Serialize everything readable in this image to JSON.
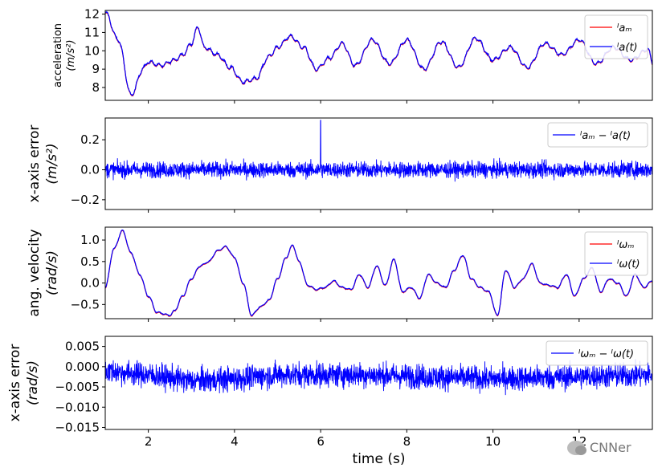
{
  "chart_data": [
    {
      "type": "line",
      "ylabel_lines": [
        "acceleration",
        "(m/s²)"
      ],
      "ylim": [
        7.3,
        12.2
      ],
      "yticks": [
        8,
        9,
        10,
        11,
        12
      ],
      "ytick_labels": [
        "8",
        "9",
        "10",
        "11",
        "12"
      ],
      "legend": [
        {
          "label": "ᴵaₘ",
          "color": "#ff0000"
        },
        {
          "label": "ᴵa(t)",
          "color": "#0000ff"
        }
      ],
      "series": [
        {
          "name": "ᴵa(t)",
          "color": "#0000ff",
          "x": [
            1.0,
            1.3,
            1.6,
            1.9,
            2.0,
            2.3,
            2.6,
            2.8,
            3.0,
            3.15,
            3.3,
            3.6,
            3.9,
            4.2,
            4.5,
            4.8,
            5.0,
            5.3,
            5.6,
            5.9,
            6.2,
            6.5,
            6.8,
            7.2,
            7.6,
            8.0,
            8.4,
            8.8,
            9.2,
            9.6,
            10.0,
            10.4,
            10.8,
            11.2,
            11.6,
            12.0,
            12.4,
            12.8,
            13.2,
            13.6,
            13.7
          ],
          "y": [
            12.1,
            10.6,
            7.6,
            9.1,
            9.4,
            9.2,
            9.5,
            9.8,
            10.4,
            11.3,
            10.2,
            9.8,
            9.1,
            8.3,
            8.5,
            9.7,
            10.2,
            10.8,
            10.2,
            9.0,
            9.6,
            10.4,
            9.2,
            10.6,
            9.3,
            10.6,
            9.0,
            10.5,
            9.1,
            10.7,
            9.5,
            10.2,
            9.1,
            10.4,
            9.8,
            10.6,
            9.3,
            10.2,
            9.5,
            10.1,
            9.4
          ]
        }
      ],
      "xlim": [
        1.0,
        13.7
      ]
    },
    {
      "type": "line",
      "ylabel_lines": [
        "x-axis error",
        "(m/s²)"
      ],
      "ylim": [
        -0.265,
        0.345
      ],
      "yticks": [
        -0.2,
        0.0,
        0.2
      ],
      "ytick_labels": [
        "−0.2",
        "0.0",
        "0.2"
      ],
      "legend": [
        {
          "label": "ᴵaₘ − ᴵa(t)",
          "color": "#0000ff"
        }
      ],
      "series": [
        {
          "name": "ᴵaₘ − ᴵa(t)",
          "color": "#0000ff",
          "noise": {
            "amplitude": 0.07,
            "spike_x": 6.0,
            "spike_y": 0.33
          }
        }
      ],
      "xlim": [
        1.0,
        13.7
      ]
    },
    {
      "type": "line",
      "ylabel_lines": [
        "ang. velocity",
        "(rad/s)"
      ],
      "ylim": [
        -0.83,
        1.3
      ],
      "yticks": [
        -0.5,
        0.0,
        0.5,
        1.0
      ],
      "ytick_labels": [
        "−0.5",
        "0.0",
        "0.5",
        "1.0"
      ],
      "legend": [
        {
          "label": "ᴵωₘ",
          "color": "#ff0000"
        },
        {
          "label": "ᴵω(t)",
          "color": "#0000ff"
        }
      ],
      "series": [
        {
          "name": "ᴵω(t)",
          "color": "#0000ff",
          "x": [
            1.0,
            1.2,
            1.4,
            1.6,
            1.8,
            2.0,
            2.2,
            2.5,
            2.6,
            2.8,
            3.0,
            3.2,
            3.4,
            3.6,
            3.8,
            4.0,
            4.2,
            4.4,
            4.6,
            4.8,
            5.0,
            5.2,
            5.35,
            5.5,
            5.7,
            5.9,
            6.1,
            6.3,
            6.5,
            6.7,
            6.9,
            7.1,
            7.3,
            7.5,
            7.7,
            7.9,
            8.1,
            8.3,
            8.5,
            8.7,
            8.9,
            9.1,
            9.3,
            9.5,
            9.7,
            9.9,
            10.1,
            10.3,
            10.5,
            10.7,
            10.9,
            11.1,
            11.3,
            11.5,
            11.7,
            11.9,
            12.1,
            12.3,
            12.5,
            12.7,
            12.9,
            13.1,
            13.3,
            13.5,
            13.7
          ],
          "y": [
            -0.1,
            0.8,
            1.22,
            0.7,
            0.2,
            -0.3,
            -0.68,
            -0.75,
            -0.65,
            -0.3,
            0.1,
            0.4,
            0.5,
            0.75,
            0.85,
            0.6,
            0.0,
            -0.75,
            -0.55,
            -0.4,
            0.1,
            0.6,
            0.88,
            0.5,
            -0.05,
            -0.15,
            -0.1,
            0.05,
            -0.1,
            -0.15,
            0.2,
            -0.1,
            0.4,
            -0.05,
            0.55,
            -0.2,
            -0.1,
            -0.35,
            0.2,
            0.0,
            -0.1,
            0.3,
            0.65,
            0.1,
            -0.1,
            -0.2,
            -0.75,
            0.3,
            -0.1,
            0.1,
            0.45,
            0.0,
            -0.05,
            -0.1,
            0.2,
            -0.3,
            0.1,
            0.35,
            -0.2,
            0.1,
            0.0,
            -0.3,
            0.2,
            -0.1,
            0.05
          ]
        }
      ],
      "xlim": [
        1.0,
        13.7
      ]
    },
    {
      "type": "line",
      "ylabel_lines": [
        "x-axis error",
        "(rad/s)"
      ],
      "ylim": [
        -0.0155,
        0.0075
      ],
      "yticks": [
        -0.015,
        -0.01,
        -0.005,
        0.0,
        0.005
      ],
      "ytick_labels": [
        "−0.015",
        "−0.010",
        "−0.005",
        "0.000",
        "0.005"
      ],
      "legend": [
        {
          "label": "ᴵωₘ − ᴵω(t)",
          "color": "#0000ff"
        }
      ],
      "series": [
        {
          "name": "ᴵωₘ − ᴵω(t)",
          "color": "#0000ff",
          "noise": {
            "amplitude": 0.004,
            "trend": [
              [
                1.0,
                -0.001
              ],
              [
                2.0,
                -0.002
              ],
              [
                3.0,
                -0.0035
              ],
              [
                4.0,
                -0.003
              ],
              [
                5.0,
                -0.002
              ],
              [
                7.0,
                -0.002
              ],
              [
                10.0,
                -0.003
              ],
              [
                13.7,
                -0.002
              ]
            ]
          }
        }
      ],
      "xlim": [
        1.0,
        13.7
      ],
      "xticks": [
        2,
        4,
        6,
        8,
        10,
        12
      ],
      "xtick_labels": [
        "2",
        "4",
        "6",
        "8",
        "10",
        "12"
      ],
      "xlabel": "time (s)"
    }
  ],
  "watermark": "CNNer"
}
